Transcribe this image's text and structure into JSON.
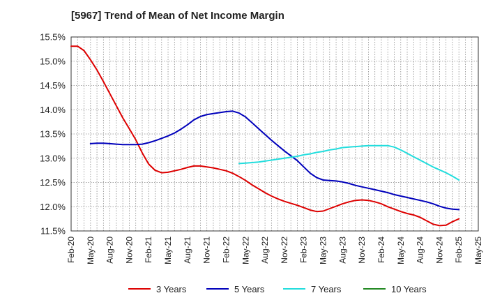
{
  "title": "[5967]  Trend of Mean of Net Income Margin",
  "chart_data": {
    "type": "line",
    "title": "[5967]  Trend of Mean of Net Income Margin",
    "xlabel": "",
    "ylabel": "",
    "ylim": [
      11.5,
      15.5
    ],
    "yticks": [
      "11.5%",
      "12.0%",
      "12.5%",
      "13.0%",
      "13.5%",
      "14.0%",
      "14.5%",
      "15.0%",
      "15.5%"
    ],
    "xticks": [
      "Feb-20",
      "May-20",
      "Aug-20",
      "Nov-20",
      "Feb-21",
      "May-21",
      "Aug-21",
      "Nov-21",
      "Feb-22",
      "May-22",
      "Aug-22",
      "Nov-22",
      "Feb-23",
      "May-23",
      "Aug-23",
      "Nov-23",
      "Feb-24",
      "May-24",
      "Aug-24",
      "Nov-24",
      "Feb-25",
      "May-25"
    ],
    "grid": true,
    "legend": "bottom",
    "series": [
      {
        "name": "3 Years",
        "color": "#dd0000",
        "x": [
          "Feb-20",
          "Mar-20",
          "Apr-20",
          "May-20",
          "Jun-20",
          "Jul-20",
          "Aug-20",
          "Sep-20",
          "Oct-20",
          "Nov-20",
          "Dec-20",
          "Jan-21",
          "Feb-21",
          "Mar-21",
          "Apr-21",
          "May-21",
          "Jun-21",
          "Jul-21",
          "Aug-21",
          "Sep-21",
          "Oct-21",
          "Nov-21",
          "Dec-21",
          "Jan-22",
          "Feb-22",
          "Mar-22",
          "Apr-22",
          "May-22",
          "Jun-22",
          "Jul-22",
          "Aug-22",
          "Sep-22",
          "Oct-22",
          "Nov-22",
          "Dec-22",
          "Jan-23",
          "Feb-23",
          "Mar-23",
          "Apr-23",
          "May-23",
          "Jun-23",
          "Jul-23",
          "Aug-23",
          "Sep-23",
          "Oct-23",
          "Nov-23",
          "Dec-23",
          "Jan-24",
          "Feb-24",
          "Mar-24",
          "Apr-24",
          "May-24",
          "Jun-24",
          "Jul-24",
          "Aug-24",
          "Sep-24",
          "Oct-24",
          "Nov-24",
          "Dec-24",
          "Jan-25",
          "Feb-25"
        ],
        "values": [
          15.31,
          15.31,
          15.22,
          15.03,
          14.82,
          14.58,
          14.33,
          14.08,
          13.83,
          13.61,
          13.38,
          13.11,
          12.88,
          12.75,
          12.7,
          12.71,
          12.74,
          12.77,
          12.81,
          12.84,
          12.84,
          12.82,
          12.8,
          12.77,
          12.74,
          12.69,
          12.62,
          12.54,
          12.45,
          12.37,
          12.29,
          12.22,
          12.16,
          12.11,
          12.07,
          12.03,
          11.98,
          11.93,
          11.9,
          11.91,
          11.96,
          12.01,
          12.06,
          12.1,
          12.13,
          12.14,
          12.13,
          12.1,
          12.06,
          12.0,
          11.95,
          11.9,
          11.86,
          11.83,
          11.78,
          11.71,
          11.64,
          11.61,
          11.62,
          11.69,
          11.75
        ]
      },
      {
        "name": "5 Years",
        "color": "#0000bb",
        "x": [
          "May-20",
          "Jun-20",
          "Jul-20",
          "Aug-20",
          "Sep-20",
          "Oct-20",
          "Nov-20",
          "Dec-20",
          "Jan-21",
          "Feb-21",
          "Mar-21",
          "Apr-21",
          "May-21",
          "Jun-21",
          "Jul-21",
          "Aug-21",
          "Sep-21",
          "Oct-21",
          "Nov-21",
          "Dec-21",
          "Jan-22",
          "Feb-22",
          "Mar-22",
          "Apr-22",
          "May-22",
          "Jun-22",
          "Jul-22",
          "Aug-22",
          "Sep-22",
          "Oct-22",
          "Nov-22",
          "Dec-22",
          "Jan-23",
          "Feb-23",
          "Mar-23",
          "Apr-23",
          "May-23",
          "Jun-23",
          "Jul-23",
          "Aug-23",
          "Sep-23",
          "Oct-23",
          "Nov-23",
          "Dec-23",
          "Jan-24",
          "Feb-24",
          "Mar-24",
          "Apr-24",
          "May-24",
          "Jun-24",
          "Jul-24",
          "Aug-24",
          "Sep-24",
          "Oct-24",
          "Nov-24",
          "Dec-24",
          "Jan-25",
          "Feb-25"
        ],
        "values": [
          13.3,
          13.31,
          13.31,
          13.3,
          13.29,
          13.28,
          13.28,
          13.28,
          13.29,
          13.32,
          13.36,
          13.41,
          13.46,
          13.52,
          13.6,
          13.69,
          13.79,
          13.86,
          13.9,
          13.92,
          13.94,
          13.96,
          13.97,
          13.93,
          13.85,
          13.73,
          13.61,
          13.49,
          13.37,
          13.26,
          13.15,
          13.05,
          12.95,
          12.82,
          12.69,
          12.6,
          12.55,
          12.54,
          12.53,
          12.51,
          12.48,
          12.44,
          12.41,
          12.38,
          12.35,
          12.32,
          12.29,
          12.25,
          12.22,
          12.19,
          12.16,
          12.13,
          12.1,
          12.06,
          12.01,
          11.97,
          11.95,
          11.94
        ]
      },
      {
        "name": "7 Years",
        "color": "#22dddd",
        "x": [
          "Apr-22",
          "May-22",
          "Jun-22",
          "Jul-22",
          "Aug-22",
          "Sep-22",
          "Oct-22",
          "Nov-22",
          "Dec-22",
          "Jan-23",
          "Feb-23",
          "Mar-23",
          "Apr-23",
          "May-23",
          "Jun-23",
          "Jul-23",
          "Aug-23",
          "Sep-23",
          "Oct-23",
          "Nov-23",
          "Dec-23",
          "Jan-24",
          "Feb-24",
          "Mar-24",
          "Apr-24",
          "May-24",
          "Jun-24",
          "Jul-24",
          "Aug-24",
          "Sep-24",
          "Oct-24",
          "Nov-24",
          "Dec-24",
          "Jan-25",
          "Feb-25"
        ],
        "values": [
          12.89,
          12.9,
          12.91,
          12.92,
          12.94,
          12.96,
          12.98,
          13.0,
          13.02,
          13.04,
          13.07,
          13.09,
          13.12,
          13.14,
          13.17,
          13.19,
          13.22,
          13.23,
          13.24,
          13.25,
          13.26,
          13.26,
          13.26,
          13.26,
          13.23,
          13.17,
          13.1,
          13.03,
          12.96,
          12.89,
          12.82,
          12.76,
          12.7,
          12.63,
          12.55
        ]
      },
      {
        "name": "10 Years",
        "color": "#228822",
        "x": [],
        "values": []
      }
    ]
  }
}
